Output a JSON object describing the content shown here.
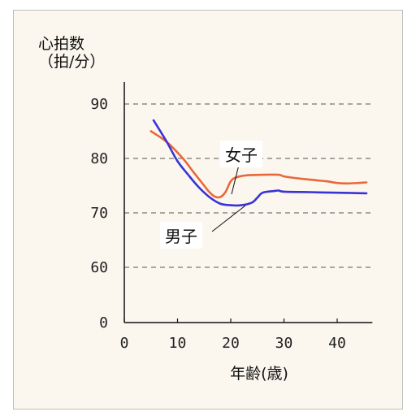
{
  "chart_data": {
    "type": "line",
    "ylabel_line1": "心拍数",
    "ylabel_line2": "（拍/分）",
    "xlabel": "年齢(歳)",
    "x_ticks": [
      0,
      10,
      20,
      30,
      40
    ],
    "y_tick_labels": [
      "0",
      "60",
      "70",
      "80",
      "90"
    ],
    "y_gridlines": [
      60,
      70,
      80,
      90
    ],
    "axis_break": "y axis compressed between 0 and 60",
    "xlim": [
      0,
      46
    ],
    "grid": "dashed horizontal",
    "series": [
      {
        "name": "女子",
        "color": "#e8683a",
        "x": [
          5,
          8,
          11,
          13,
          15,
          16,
          17,
          18,
          19,
          20,
          21,
          23,
          26,
          29,
          30,
          33,
          36,
          38,
          40,
          42,
          44,
          45.5
        ],
        "y": [
          85,
          83,
          80,
          77.5,
          75,
          73.8,
          73,
          72.9,
          73.8,
          75.8,
          76.5,
          76.9,
          77,
          77,
          76.7,
          76.3,
          76,
          75.8,
          75.5,
          75.4,
          75.5,
          75.6
        ]
      },
      {
        "name": "男子",
        "color": "#3a33d6",
        "x": [
          5.5,
          8,
          10,
          12,
          14,
          16,
          18,
          20,
          22,
          24,
          25,
          26,
          28,
          29,
          30,
          35,
          40,
          45.5
        ],
        "y": [
          87,
          83,
          79.5,
          77,
          74.7,
          72.9,
          71.7,
          71.4,
          71.4,
          71.9,
          72.8,
          73.7,
          74,
          74.1,
          73.9,
          73.8,
          73.7,
          73.6
        ]
      }
    ]
  }
}
